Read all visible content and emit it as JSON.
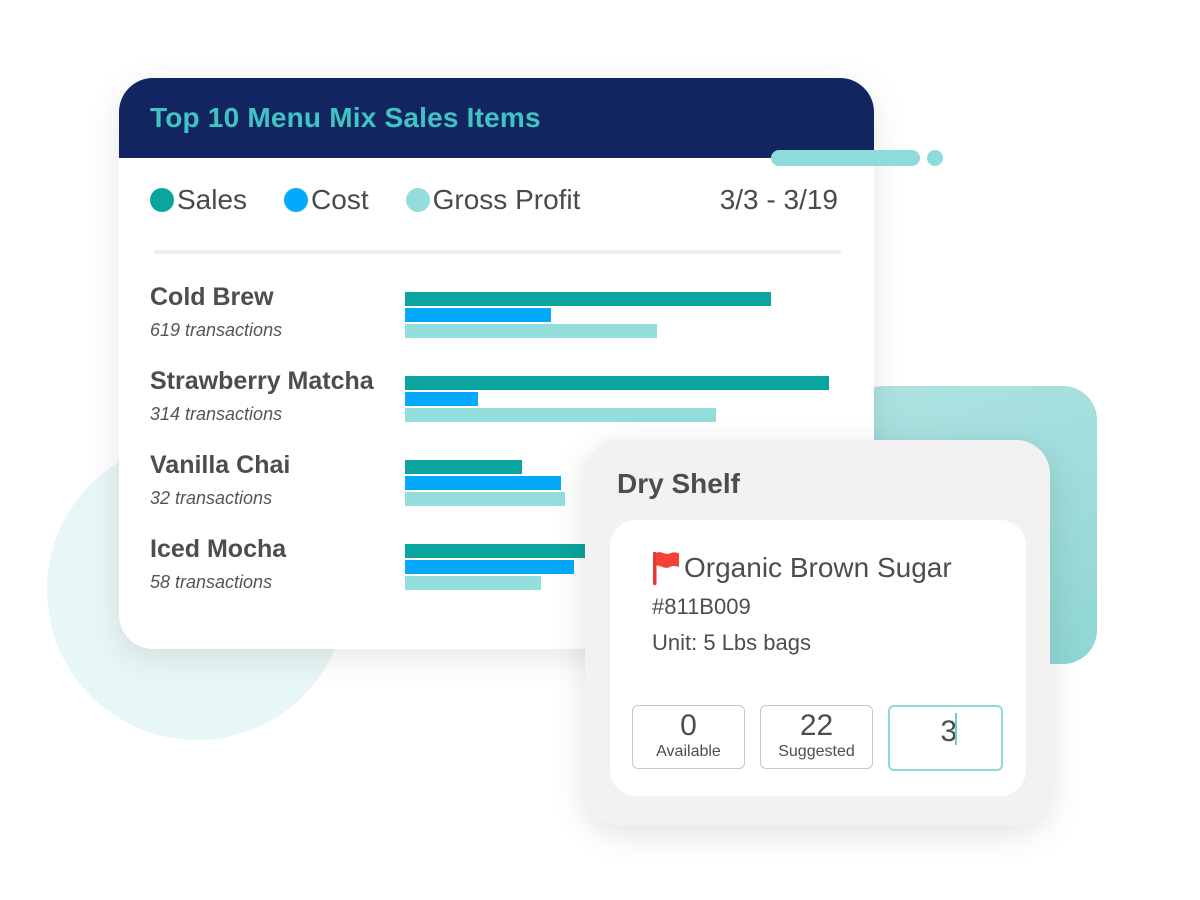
{
  "colors": {
    "sales": "#0aa59e",
    "cost": "#04a9fb",
    "gross_profit": "#93dedb",
    "header_bg": "#122561",
    "title_text": "#3fc5c0"
  },
  "sales_card": {
    "title": "Top 10 Menu Mix Sales Items",
    "legend": [
      {
        "label": "Sales",
        "color": "#0aa59e"
      },
      {
        "label": "Cost",
        "color": "#04a9fb"
      },
      {
        "label": "Gross Profit",
        "color": "#93dedb"
      }
    ],
    "date_range": "3/3 - 3/19"
  },
  "chart_data": {
    "type": "bar",
    "title": "Top 10 Menu Mix Sales Items",
    "categories": [
      "Cold Brew",
      "Strawberry Matcha",
      "Vanilla Chai",
      "Iced Mocha"
    ],
    "transactions": [
      "619 transactions",
      "314 transactions",
      "32 transactions",
      "58 transactions"
    ],
    "series": [
      {
        "name": "Sales",
        "values": [
          366,
          424,
          117,
          180
        ]
      },
      {
        "name": "Cost",
        "values": [
          146,
          73,
          156,
          169
        ]
      },
      {
        "name": "Gross Profit",
        "values": [
          252,
          311,
          160,
          136
        ]
      }
    ],
    "xlim": [
      0,
      430
    ],
    "legend": "top-left",
    "grid": false
  },
  "shelf_card": {
    "title": "Dry Shelf",
    "flag_icon": "red-flag-icon",
    "product_name": "Organic Brown Sugar",
    "product_code": "#811B009",
    "unit": "Unit: 5 Lbs bags",
    "available_value": "0",
    "available_label": "Available",
    "suggested_value": "22",
    "suggested_label": "Suggested",
    "order_value": "3"
  }
}
